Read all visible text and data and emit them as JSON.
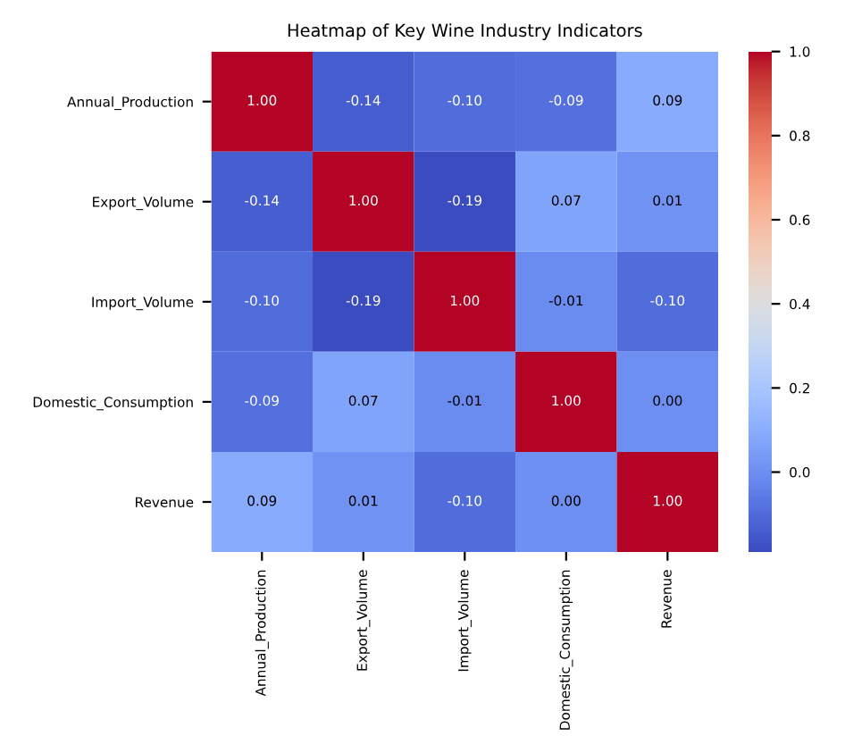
{
  "chart_data": {
    "type": "heatmap",
    "title": "Heatmap of Key Wine Industry Indicators",
    "categories": [
      "Annual_Production",
      "Export_Volume",
      "Import_Volume",
      "Domestic_Consumption",
      "Revenue"
    ],
    "y_categories": [
      "Annual_Production",
      "Export_Volume",
      "Import_Volume",
      "Domestic_Consumption",
      "Revenue"
    ],
    "cells": [
      [
        1.0,
        -0.14,
        -0.1,
        -0.09,
        0.09
      ],
      [
        -0.14,
        1.0,
        -0.19,
        0.07,
        0.01
      ],
      [
        -0.1,
        -0.19,
        1.0,
        -0.01,
        -0.1
      ],
      [
        -0.09,
        0.07,
        -0.01,
        1.0,
        0.0
      ],
      [
        0.09,
        0.01,
        -0.1,
        0.0,
        1.0
      ]
    ],
    "data_labels": true,
    "cell_labels": [
      [
        "1.00",
        "-0.14",
        "-0.10",
        "-0.09",
        "0.09"
      ],
      [
        "-0.14",
        "1.00",
        "-0.19",
        "0.07",
        "0.01"
      ],
      [
        "-0.10",
        "-0.19",
        "1.00",
        "-0.01",
        "-0.10"
      ],
      [
        "-0.09",
        "0.07",
        "-0.01",
        "1.00",
        "0.00"
      ],
      [
        "0.09",
        "0.01",
        "-0.10",
        "0.00",
        "1.00"
      ]
    ],
    "clim": [
      -0.19,
      1.0
    ],
    "cticks": [
      {
        "value": 0,
        "label": "0.0"
      },
      0.2,
      0.4,
      0.6,
      0.8,
      {
        "value": 1,
        "label": "1.0"
      }
    ]
  }
}
